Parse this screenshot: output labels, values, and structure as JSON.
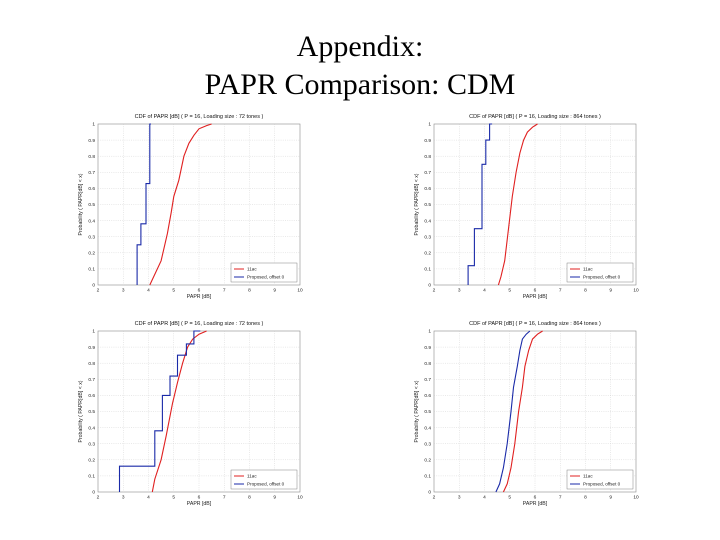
{
  "title_line1": "Appendix:",
  "title_line2": "PAPR Comparison: CDM",
  "chart_data": [
    {
      "type": "line",
      "title": "CDF of PAPR [dB] ( P = 16, Loading size : 72 tones )",
      "xlabel": "PAPR [dB]",
      "ylabel": "Probability ( PAPR[dB] < x)",
      "xlim": [
        2,
        10
      ],
      "ylim": [
        0,
        1
      ],
      "xticks": [
        "2",
        "3",
        "4",
        "5",
        "6",
        "7",
        "8",
        "9",
        "10"
      ],
      "yticks": [
        "0",
        "0.1",
        "0.2",
        "0.3",
        "0.4",
        "0.5",
        "0.6",
        "0.7",
        "0.8",
        "0.9",
        "1"
      ],
      "grid": true,
      "legend_position": "bottom-right",
      "series": [
        {
          "name": "11ac",
          "color": "#e02020",
          "x": [
            4.05,
            4.2,
            4.5,
            4.75,
            4.9,
            5.0,
            5.2,
            5.4,
            5.6,
            5.8,
            6.0,
            6.3,
            6.5
          ],
          "y": [
            0.0,
            0.05,
            0.15,
            0.32,
            0.45,
            0.55,
            0.65,
            0.8,
            0.88,
            0.93,
            0.97,
            0.99,
            1.0
          ]
        },
        {
          "name": "Proposed, offset 0",
          "color": "#1a2aa8",
          "x": [
            3.55,
            3.55,
            3.7,
            3.7,
            3.9,
            3.9,
            4.05,
            4.05,
            4.1
          ],
          "y": [
            0.0,
            0.25,
            0.25,
            0.38,
            0.38,
            0.63,
            0.63,
            1.0,
            1.0
          ]
        }
      ]
    },
    {
      "type": "line",
      "title": "CDF of PAPR [dB] ( P = 16, Loading size : 864 tones )",
      "xlabel": "PAPR [dB]",
      "ylabel": "Probability ( PAPR[dB] < x)",
      "xlim": [
        2,
        10
      ],
      "ylim": [
        0,
        1
      ],
      "xticks": [
        "2",
        "3",
        "4",
        "5",
        "6",
        "7",
        "8",
        "9",
        "10"
      ],
      "yticks": [
        "0",
        "0.1",
        "0.2",
        "0.3",
        "0.4",
        "0.5",
        "0.6",
        "0.7",
        "0.8",
        "0.9",
        "1"
      ],
      "grid": true,
      "legend_position": "bottom-right",
      "series": [
        {
          "name": "11ac",
          "color": "#e02020",
          "x": [
            4.55,
            4.65,
            4.8,
            4.95,
            5.1,
            5.25,
            5.4,
            5.55,
            5.7,
            5.9,
            6.1
          ],
          "y": [
            0.0,
            0.05,
            0.15,
            0.35,
            0.55,
            0.7,
            0.82,
            0.9,
            0.95,
            0.98,
            1.0
          ]
        },
        {
          "name": "Proposed, offset 0",
          "color": "#1a2aa8",
          "x": [
            3.35,
            3.35,
            3.6,
            3.6,
            3.9,
            3.9,
            4.05,
            4.05,
            4.2,
            4.2,
            4.3
          ],
          "y": [
            0.0,
            0.12,
            0.12,
            0.35,
            0.35,
            0.75,
            0.75,
            0.9,
            0.9,
            1.0,
            1.0
          ]
        }
      ]
    },
    {
      "type": "line",
      "title": "CDF of PAPR [dB] ( P = 16, Loading size : 72 tones )",
      "xlabel": "PAPR [dB]",
      "ylabel": "Probability ( PAPR[dB] < x)",
      "xlim": [
        2,
        10
      ],
      "ylim": [
        0,
        1
      ],
      "xticks": [
        "2",
        "3",
        "4",
        "5",
        "6",
        "7",
        "8",
        "9",
        "10"
      ],
      "yticks": [
        "0",
        "0.1",
        "0.2",
        "0.3",
        "0.4",
        "0.5",
        "0.6",
        "0.7",
        "0.8",
        "0.9",
        "1"
      ],
      "grid": true,
      "legend_position": "bottom-right",
      "series": [
        {
          "name": "11ac",
          "color": "#e02020",
          "x": [
            4.15,
            4.25,
            4.5,
            4.7,
            4.95,
            5.15,
            5.35,
            5.55,
            5.75,
            6.0,
            6.3
          ],
          "y": [
            0.0,
            0.08,
            0.2,
            0.35,
            0.55,
            0.68,
            0.8,
            0.9,
            0.95,
            0.98,
            1.0
          ]
        },
        {
          "name": "Proposed, offset 0",
          "color": "#1a2aa8",
          "x": [
            2.85,
            2.85,
            4.25,
            4.25,
            4.55,
            4.55,
            4.85,
            4.85,
            5.15,
            5.15,
            5.5,
            5.5,
            5.8,
            5.8,
            6.05
          ],
          "y": [
            0.0,
            0.16,
            0.16,
            0.38,
            0.38,
            0.6,
            0.6,
            0.72,
            0.72,
            0.85,
            0.85,
            0.92,
            0.92,
            1.0,
            1.0
          ]
        }
      ]
    },
    {
      "type": "line",
      "title": "CDF of PAPR [dB] ( P = 16, Loading size : 864 tones )",
      "xlabel": "PAPR [dB]",
      "ylabel": "Probability ( PAPR[dB] < x)",
      "xlim": [
        2,
        10
      ],
      "ylim": [
        0,
        1
      ],
      "xticks": [
        "2",
        "3",
        "4",
        "5",
        "6",
        "7",
        "8",
        "9",
        "10"
      ],
      "yticks": [
        "0",
        "0.1",
        "0.2",
        "0.3",
        "0.4",
        "0.5",
        "0.6",
        "0.7",
        "0.8",
        "0.9",
        "1"
      ],
      "grid": true,
      "legend_position": "bottom-right",
      "series": [
        {
          "name": "11ac",
          "color": "#e02020",
          "x": [
            4.75,
            4.9,
            5.05,
            5.2,
            5.35,
            5.5,
            5.6,
            5.75,
            5.9,
            6.1,
            6.3
          ],
          "y": [
            0.0,
            0.05,
            0.15,
            0.3,
            0.5,
            0.65,
            0.78,
            0.88,
            0.95,
            0.98,
            1.0
          ]
        },
        {
          "name": "Proposed, offset 0",
          "color": "#1a2aa8",
          "x": [
            4.45,
            4.6,
            4.75,
            4.9,
            5.05,
            5.15,
            5.3,
            5.4,
            5.5,
            5.65,
            5.8
          ],
          "y": [
            0.0,
            0.05,
            0.15,
            0.3,
            0.5,
            0.65,
            0.78,
            0.88,
            0.95,
            0.98,
            1.0
          ]
        }
      ]
    }
  ]
}
